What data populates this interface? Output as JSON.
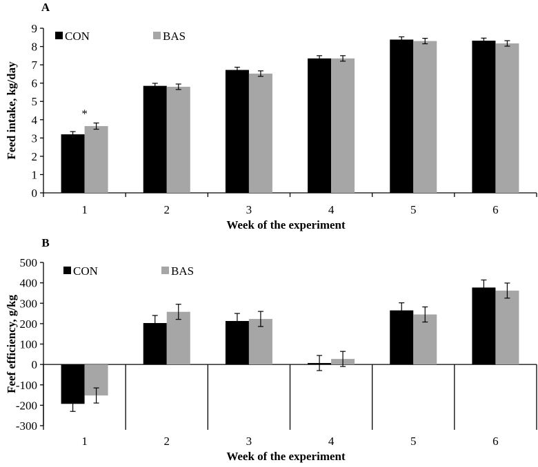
{
  "chart_data": [
    {
      "panel": "A",
      "type": "bar",
      "categories": [
        "1",
        "2",
        "3",
        "4",
        "5",
        "6"
      ],
      "series": [
        {
          "name": "CON",
          "color": "#000000",
          "values": [
            3.2,
            5.85,
            6.72,
            7.35,
            8.38,
            8.32
          ],
          "errors": [
            0.15,
            0.14,
            0.15,
            0.15,
            0.15,
            0.14
          ]
        },
        {
          "name": "BAS",
          "color": "#a6a6a6",
          "values": [
            3.65,
            5.8,
            6.52,
            7.35,
            8.3,
            8.17
          ],
          "errors": [
            0.17,
            0.15,
            0.15,
            0.15,
            0.15,
            0.15
          ]
        }
      ],
      "ylabel": "Feed intake, kg/day",
      "xlabel": "Week of the experiment",
      "ylim": [
        0,
        9
      ],
      "yticks": [
        0,
        1,
        2,
        3,
        4,
        5,
        6,
        7,
        8,
        9
      ],
      "annotations": [
        {
          "text": "*",
          "category": "1"
        }
      ]
    },
    {
      "panel": "B",
      "type": "bar",
      "categories": [
        "1",
        "2",
        "3",
        "4",
        "5",
        "6"
      ],
      "series": [
        {
          "name": "CON",
          "color": "#000000",
          "values": [
            -193,
            203,
            213,
            7,
            265,
            377
          ],
          "errors": [
            37,
            37,
            37,
            37,
            37,
            37
          ]
        },
        {
          "name": "BAS",
          "color": "#a6a6a6",
          "values": [
            -152,
            258,
            223,
            27,
            245,
            362
          ],
          "errors": [
            37,
            37,
            37,
            37,
            37,
            37
          ]
        }
      ],
      "ylabel": "Feef efficiency, g/kg",
      "xlabel": "Week of the experiment",
      "ylim": [
        -300,
        500
      ],
      "yticks": [
        -300,
        -200,
        -100,
        0,
        100,
        200,
        300,
        400,
        500
      ],
      "annotations": []
    }
  ]
}
